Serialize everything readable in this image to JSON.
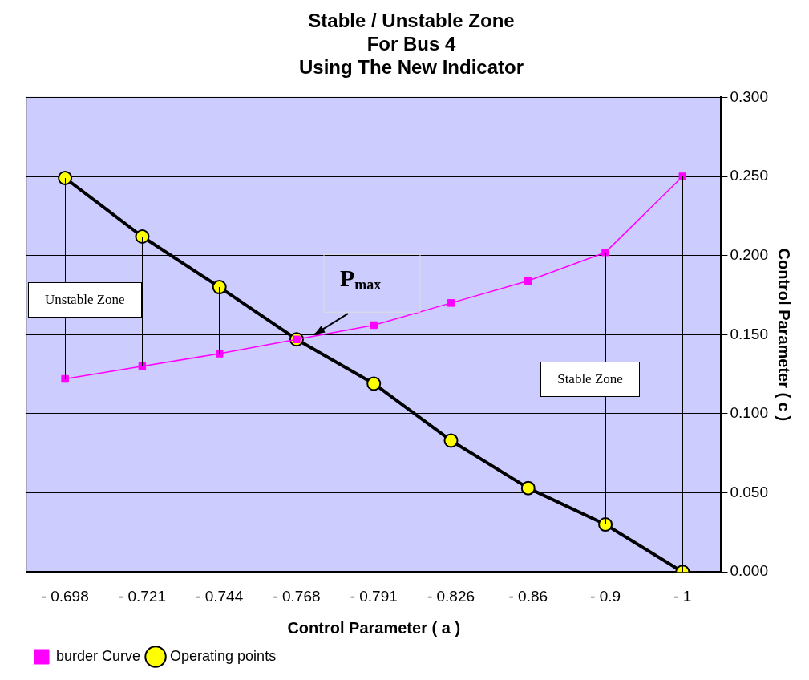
{
  "chart_data": {
    "type": "line",
    "title": "Stable / Unstable Zone\nFor Bus 4\nUsing The New Indicator",
    "xlabel": "Control Parameter ( a )",
    "ylabel": "Control Parameter ( c )",
    "categories": [
      "- 0.698",
      "- 0.721",
      "- 0.744",
      "- 0.768",
      "- 0.791",
      "- 0.826",
      "- 0.86",
      "- 0.9",
      "- 1"
    ],
    "series": [
      {
        "name": "burder Curve",
        "color": "#ff00ff",
        "marker": "square",
        "values": [
          0.122,
          0.13,
          0.138,
          0.147,
          0.156,
          0.17,
          0.184,
          0.202,
          0.25
        ]
      },
      {
        "name": "Operating points",
        "color": "#000000",
        "marker": "circle",
        "values": [
          0.249,
          0.212,
          0.18,
          0.147,
          0.119,
          0.083,
          0.053,
          0.03,
          0.0
        ]
      }
    ],
    "ylim": [
      0,
      0.3
    ],
    "yticks": [
      {
        "value": 0,
        "label": "0.000"
      },
      {
        "value": 0.05,
        "label": "0.050"
      },
      {
        "value": 0.1,
        "label": "0.100"
      },
      {
        "value": 0.15,
        "label": "0.150"
      },
      {
        "value": 0.2,
        "label": "0.200"
      },
      {
        "value": 0.25,
        "label": "0.250"
      },
      {
        "value": 0.3,
        "label": "0.300"
      }
    ],
    "grid": "y",
    "legend": "bottom left",
    "annotations": [
      "Unstable Zone",
      "Stable Zone",
      {
        "text": "P$_{max}$",
        "x": "- 0.768",
        "y": 0.147
      }
    ]
  }
}
